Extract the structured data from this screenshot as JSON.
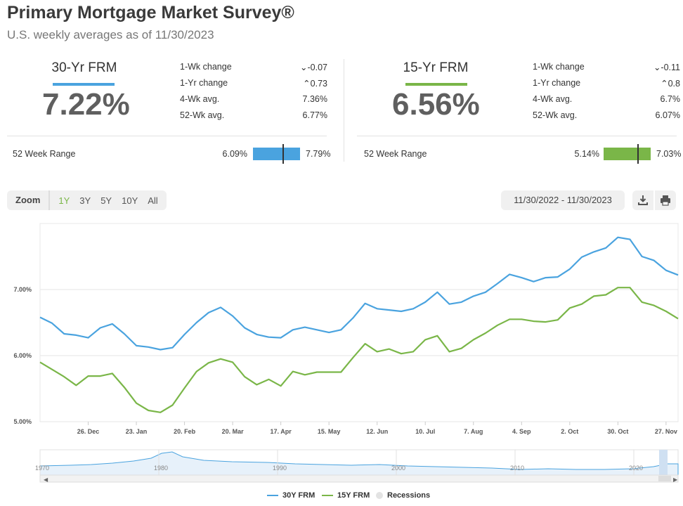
{
  "header": {
    "title": "Primary Mortgage Market Survey®",
    "subtitle": "U.S. weekly averages as of 11/30/2023"
  },
  "panels": [
    {
      "label": "30-Yr FRM",
      "color": "#4aa3df",
      "rate": "7.22%",
      "stats": [
        {
          "k": "1-Wk change",
          "v": "-0.07",
          "dir": "down"
        },
        {
          "k": "1-Yr change",
          "v": "0.73",
          "dir": "up"
        },
        {
          "k": "4-Wk avg.",
          "v": "7.36%",
          "dir": ""
        },
        {
          "k": "52-Wk avg.",
          "v": "6.77%",
          "dir": ""
        }
      ],
      "range_label": "52 Week Range",
      "range_low": "6.09%",
      "range_high": "7.79%"
    },
    {
      "label": "15-Yr FRM",
      "color": "#7ab648",
      "rate": "6.56%",
      "stats": [
        {
          "k": "1-Wk change",
          "v": "-0.11",
          "dir": "down"
        },
        {
          "k": "1-Yr change",
          "v": "0.8",
          "dir": "up"
        },
        {
          "k": "4-Wk avg.",
          "v": "6.7%",
          "dir": ""
        },
        {
          "k": "52-Wk avg.",
          "v": "6.07%",
          "dir": ""
        }
      ],
      "range_label": "52 Week Range",
      "range_low": "5.14%",
      "range_high": "7.03%"
    }
  ],
  "toolbar": {
    "zoom_label": "Zoom",
    "zoom_options": [
      "1Y",
      "3Y",
      "5Y",
      "10Y",
      "All"
    ],
    "active_zoom": "1Y",
    "date_range": "11/30/2022 - 11/30/2023",
    "download_icon": "download-icon",
    "print_icon": "print-icon"
  },
  "chart_data": {
    "type": "line",
    "ylim": [
      5.0,
      8.0
    ],
    "ytick_values": [
      5.0,
      6.0,
      7.0
    ],
    "ytick_labels": [
      "5.00%",
      "6.00%",
      "7.00%"
    ],
    "xtick_labels": [
      "26. Dec",
      "23. Jan",
      "20. Feb",
      "20. Mar",
      "17. Apr",
      "15. May",
      "12. Jun",
      "10. Jul",
      "7. Aug",
      "4. Sep",
      "2. Oct",
      "30. Oct",
      "27. Nov"
    ],
    "grid": true,
    "legend_position": "bottom-center",
    "series": [
      {
        "name": "30Y FRM",
        "color": "#4aa3df",
        "values": [
          6.58,
          6.49,
          6.33,
          6.31,
          6.27,
          6.42,
          6.48,
          6.33,
          6.15,
          6.13,
          6.09,
          6.12,
          6.32,
          6.5,
          6.65,
          6.73,
          6.6,
          6.42,
          6.32,
          6.28,
          6.27,
          6.39,
          6.43,
          6.39,
          6.35,
          6.39,
          6.57,
          6.79,
          6.71,
          6.69,
          6.67,
          6.71,
          6.81,
          6.96,
          6.78,
          6.81,
          6.9,
          6.96,
          7.09,
          7.23,
          7.18,
          7.12,
          7.18,
          7.19,
          7.31,
          7.49,
          7.57,
          7.63,
          7.79,
          7.76,
          7.5,
          7.44,
          7.29,
          7.22
        ]
      },
      {
        "name": "15Y FRM",
        "color": "#7ab648",
        "values": [
          5.9,
          5.79,
          5.68,
          5.55,
          5.69,
          5.69,
          5.73,
          5.52,
          5.28,
          5.17,
          5.14,
          5.25,
          5.51,
          5.76,
          5.89,
          5.95,
          5.9,
          5.68,
          5.56,
          5.64,
          5.54,
          5.76,
          5.71,
          5.75,
          5.75,
          5.75,
          5.97,
          6.18,
          6.06,
          6.1,
          6.03,
          6.06,
          6.24,
          6.3,
          6.06,
          6.11,
          6.24,
          6.34,
          6.46,
          6.55,
          6.55,
          6.52,
          6.51,
          6.54,
          6.72,
          6.78,
          6.9,
          6.92,
          7.03,
          7.03,
          6.81,
          6.76,
          6.67,
          6.56
        ]
      }
    ],
    "legend_extra": "Recessions"
  },
  "navigator": {
    "year_labels": [
      "1970",
      "1980",
      "1990",
      "2000",
      "2010",
      "2020"
    ]
  }
}
